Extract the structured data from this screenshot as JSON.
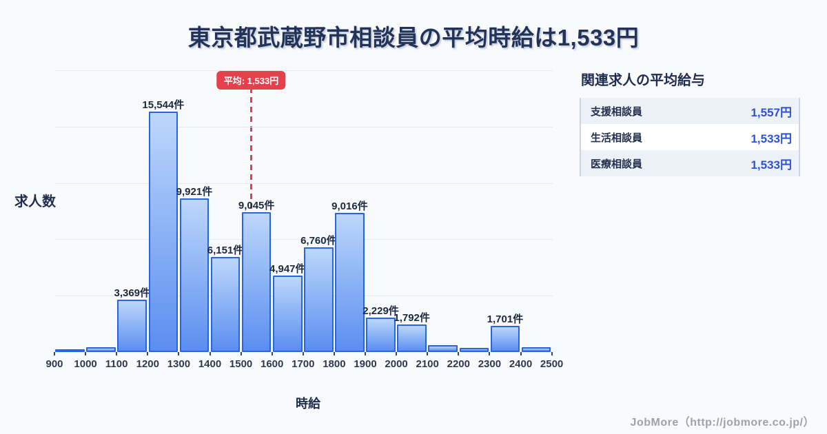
{
  "chart_data": {
    "type": "bar",
    "title": "東京都武蔵野市相談員の平均時給は1,533円",
    "xlabel": "時給",
    "ylabel": "求人数",
    "bin_edges": [
      900,
      1000,
      1100,
      1200,
      1300,
      1400,
      1500,
      1600,
      1700,
      1800,
      1900,
      2000,
      2100,
      2200,
      2300,
      2400,
      2500
    ],
    "values": [
      130,
      310,
      3369,
      15544,
      9921,
      6151,
      9045,
      4947,
      6760,
      9016,
      2229,
      1792,
      430,
      260,
      1701,
      330
    ],
    "bar_labels": [
      "",
      "",
      "3,369件",
      "15,544件",
      "9,921件",
      "6,151件",
      "9,045件",
      "4,947件",
      "6,760件",
      "9,016件",
      "2,229件",
      "1,792件",
      "",
      "",
      "1,701件",
      ""
    ],
    "average_line": {
      "x": 1533,
      "label": "平均: 1,533円"
    },
    "ylim": [
      0,
      18200
    ],
    "grid": true,
    "legend": false
  },
  "panel": {
    "heading": "関連求人の平均給与",
    "rows": [
      {
        "label": "支援相談員",
        "value": "1,557円"
      },
      {
        "label": "生活相談員",
        "value": "1,533円"
      },
      {
        "label": "医療相談員",
        "value": "1,533円"
      }
    ]
  },
  "footer": {
    "credit": "JobMore（http://jobmore.co.jp/）"
  },
  "colors": {
    "background": "#f8fafc",
    "bar_fill_top": "#bdd7fb",
    "bar_fill_bottom": "#5a8ef0",
    "bar_border": "#2863e0",
    "average_red": "#e5404c",
    "grid_line": "#e3e8f2",
    "title_text": "#22335a",
    "value_blue": "#2b51de",
    "stripe": "#edf1f8"
  }
}
